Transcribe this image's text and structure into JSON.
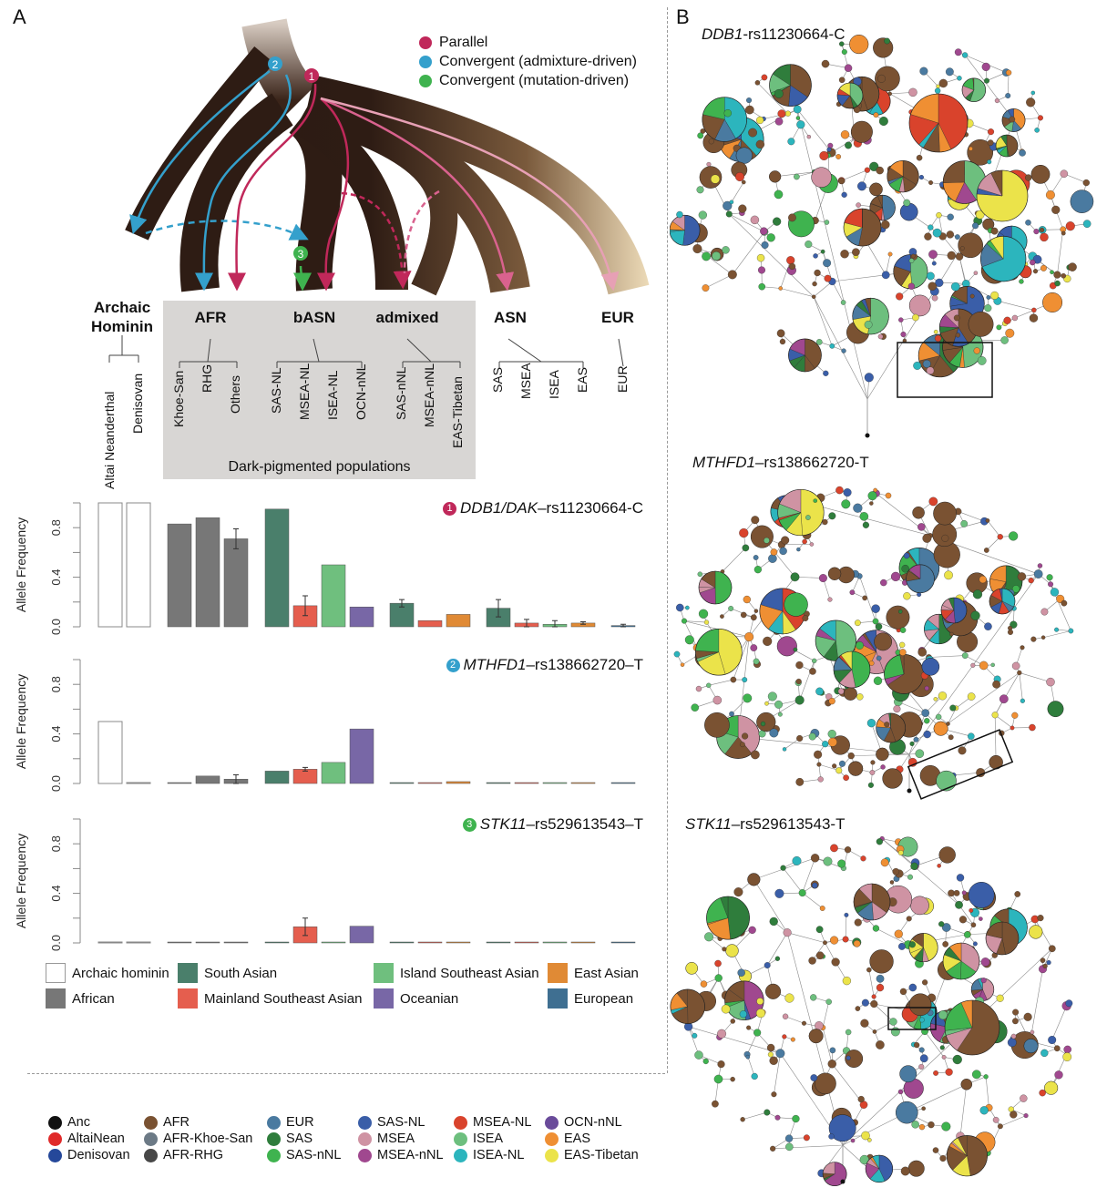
{
  "panel_a": {
    "letter": "A",
    "mechanism_legend": [
      {
        "label": "Parallel",
        "color": "#c0285a"
      },
      {
        "label": "Convergent (admixture-driven)",
        "color": "#34a0cc"
      },
      {
        "label": "Convergent (mutation-driven)",
        "color": "#3fb34f"
      }
    ],
    "badges": {
      "parallel": "1",
      "admixture": "2",
      "mutation": "3"
    },
    "groups": [
      {
        "label": "Archaic Hominin"
      },
      {
        "label": "AFR"
      },
      {
        "label": "bASN"
      },
      {
        "label": "admixed"
      },
      {
        "label": "ASN"
      },
      {
        "label": "EUR"
      }
    ],
    "dark_pigmented_label": "Dark-pigmented populations",
    "populations": [
      "Altai Neanderthal",
      "Denisovan",
      "Khoe-San",
      "RHG",
      "Others",
      "SAS-NL",
      "MSEA-NL",
      "ISEA-NL",
      "OCN-nNL",
      "SAS-nNL",
      "MSEA-nNL",
      "EAS-Tibetan",
      "SAS",
      "MSEA",
      "ISEA",
      "EAS",
      "EUR"
    ],
    "bar_legend": [
      {
        "label": "Archaic hominin",
        "color": "#ffffff"
      },
      {
        "label": "South Asian",
        "color": "#4a7f6b"
      },
      {
        "label": "Island Southeast Asian",
        "color": "#6fbf7e"
      },
      {
        "label": "East Asian",
        "color": "#e08a35"
      },
      {
        "label": "African",
        "color": "#777777"
      },
      {
        "label": "Mainland Southeast Asian",
        "color": "#e55e4e"
      },
      {
        "label": "Oceanian",
        "color": "#7867a6"
      },
      {
        "label": "European",
        "color": "#3f6f91"
      }
    ]
  },
  "chart_data": [
    {
      "type": "bar",
      "title_badge": "1",
      "title_gene": "DDB1/DAK",
      "title_rest": "–rs11230664-C",
      "ylabel": "Allele Frequency",
      "ylim": [
        0,
        1
      ],
      "yticks": [
        "0.0",
        "0.4",
        "0.8"
      ],
      "categories": [
        "Altai Neanderthal",
        "Denisovan",
        "Khoe-San",
        "RHG",
        "Others",
        "SAS-NL",
        "MSEA-NL",
        "ISEA-NL",
        "OCN-nNL",
        "SAS-nNL",
        "MSEA-nNL",
        "EAS-Tibetan",
        "SAS",
        "MSEA",
        "ISEA",
        "EAS",
        "EUR"
      ],
      "values": [
        1.0,
        1.0,
        0.83,
        0.88,
        0.71,
        0.95,
        0.17,
        0.5,
        0.16,
        0.19,
        0.05,
        0.1,
        0.15,
        0.03,
        0.02,
        0.03,
        0.01
      ],
      "errors": [
        0,
        0,
        0,
        0,
        0.08,
        0,
        0.08,
        0,
        0,
        0.03,
        0,
        0,
        0.07,
        0.03,
        0.03,
        0.01,
        0.01
      ]
    },
    {
      "type": "bar",
      "title_badge": "2",
      "title_gene": "MTHFD1",
      "title_rest": "–rs138662720–T",
      "ylabel": "Allele Frequency",
      "ylim": [
        0,
        1
      ],
      "yticks": [
        "0.0",
        "0.4",
        "0.8"
      ],
      "categories": [
        "Altai Neanderthal",
        "Denisovan",
        "Khoe-San",
        "RHG",
        "Others",
        "SAS-NL",
        "MSEA-NL",
        "ISEA-NL",
        "OCN-nNL",
        "SAS-nNL",
        "MSEA-nNL",
        "EAS-Tibetan",
        "SAS",
        "MSEA",
        "ISEA",
        "EAS",
        "EUR"
      ],
      "values": [
        0.5,
        0,
        0,
        0.06,
        0.035,
        0.1,
        0.115,
        0.17,
        0.44,
        0,
        0,
        0.015,
        0,
        0,
        0,
        0,
        0
      ],
      "errors": [
        0,
        0,
        0,
        0,
        0.035,
        0,
        0.015,
        0,
        0,
        0,
        0,
        0,
        0,
        0,
        0,
        0,
        0
      ]
    },
    {
      "type": "bar",
      "title_badge": "3",
      "title_gene": "STK11",
      "title_rest": "–rs529613543–T",
      "ylabel": "Allele Frequency",
      "ylim": [
        0,
        1
      ],
      "yticks": [
        "0.0",
        "0.4",
        "0.8"
      ],
      "categories": [
        "Altai Neanderthal",
        "Denisovan",
        "Khoe-San",
        "RHG",
        "Others",
        "SAS-NL",
        "MSEA-NL",
        "ISEA-NL",
        "OCN-nNL",
        "SAS-nNL",
        "MSEA-nNL",
        "EAS-Tibetan",
        "SAS",
        "MSEA",
        "ISEA",
        "EAS",
        "EUR"
      ],
      "values": [
        0,
        0,
        0,
        0,
        0.005,
        0,
        0.13,
        0,
        0.135,
        0,
        0,
        0,
        0,
        0,
        0,
        0,
        0
      ],
      "errors": [
        0,
        0,
        0,
        0,
        0,
        0,
        0.07,
        0,
        0,
        0,
        0,
        0,
        0,
        0,
        0,
        0,
        0
      ]
    }
  ],
  "panel_b": {
    "letter": "B",
    "networks": [
      {
        "gene": "DDB1",
        "rest": "-rs11230664-C"
      },
      {
        "gene": "MTHFD1",
        "rest": "–rs138662720-T"
      },
      {
        "gene": "STK11",
        "rest": "–rs529613543-T"
      }
    ],
    "haplotype_legend": [
      {
        "label": "Anc",
        "color": "#111111"
      },
      {
        "label": "AltaiNean",
        "color": "#e02a2a"
      },
      {
        "label": "Denisovan",
        "color": "#25489a"
      },
      {
        "label": "AFR",
        "color": "#7a5232"
      },
      {
        "label": "AFR-Khoe-San",
        "color": "#6c7a86"
      },
      {
        "label": "AFR-RHG",
        "color": "#474747"
      },
      {
        "label": "EUR",
        "color": "#4a7aa0"
      },
      {
        "label": "SAS",
        "color": "#2f7d3c"
      },
      {
        "label": "SAS-nNL",
        "color": "#3fb34f"
      },
      {
        "label": "SAS-NL",
        "color": "#3a5ea8"
      },
      {
        "label": "MSEA",
        "color": "#cf93a3"
      },
      {
        "label": "MSEA-nNL",
        "color": "#a0488f"
      },
      {
        "label": "MSEA-NL",
        "color": "#d9432c"
      },
      {
        "label": "ISEA",
        "color": "#6dbf7e"
      },
      {
        "label": "ISEA-NL",
        "color": "#2cb5bd"
      },
      {
        "label": "OCN-nNL",
        "color": "#6a4b9a"
      },
      {
        "label": "EAS",
        "color": "#ef8f33"
      },
      {
        "label": "EAS-Tibetan",
        "color": "#ebe34a"
      }
    ]
  }
}
